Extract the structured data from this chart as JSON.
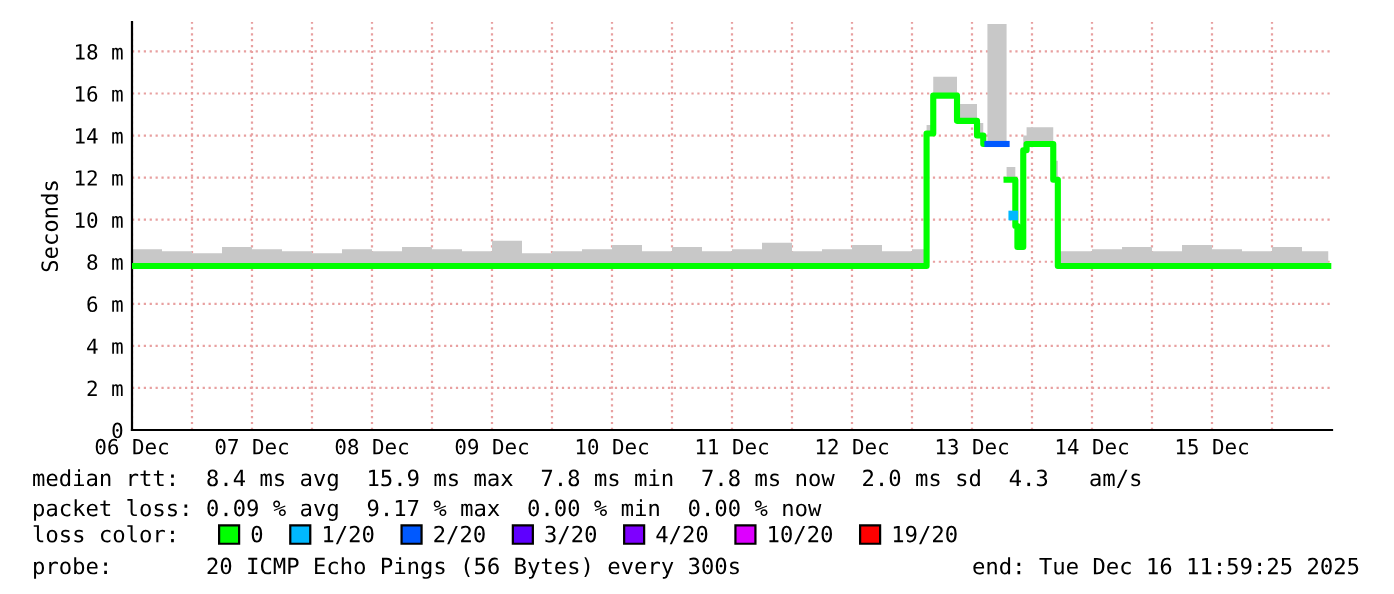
{
  "chart_data": {
    "type": "step",
    "ylabel": "Seconds",
    "xlim": [
      "2025-12-06T12:00",
      "2025-12-16T12:00"
    ],
    "xticks": [
      {
        "value": "2025-12-06T12:00",
        "label": "06 Dec"
      },
      {
        "value": "2025-12-07T00:00",
        "label": null
      },
      {
        "value": "2025-12-07T12:00",
        "label": "07 Dec"
      },
      {
        "value": "2025-12-08T00:00",
        "label": null
      },
      {
        "value": "2025-12-08T12:00",
        "label": "08 Dec"
      },
      {
        "value": "2025-12-09T00:00",
        "label": null
      },
      {
        "value": "2025-12-09T12:00",
        "label": "09 Dec"
      },
      {
        "value": "2025-12-10T00:00",
        "label": null
      },
      {
        "value": "2025-12-10T12:00",
        "label": "10 Dec"
      },
      {
        "value": "2025-12-11T00:00",
        "label": null
      },
      {
        "value": "2025-12-11T12:00",
        "label": "11 Dec"
      },
      {
        "value": "2025-12-12T00:00",
        "label": null
      },
      {
        "value": "2025-12-12T12:00",
        "label": "12 Dec"
      },
      {
        "value": "2025-12-13T00:00",
        "label": null
      },
      {
        "value": "2025-12-13T12:00",
        "label": "13 Dec"
      },
      {
        "value": "2025-12-14T00:00",
        "label": null
      },
      {
        "value": "2025-12-14T12:00",
        "label": "14 Dec"
      },
      {
        "value": "2025-12-15T00:00",
        "label": null
      },
      {
        "value": "2025-12-15T12:00",
        "label": "15 Dec"
      },
      {
        "value": "2025-12-16T00:00",
        "label": null
      }
    ],
    "ylim": [
      0,
      19.4
    ],
    "yticks": [
      0,
      {
        "value": 2,
        "label": "2 m"
      },
      {
        "value": 4,
        "label": "4 m"
      },
      {
        "value": 6,
        "label": "6 m"
      },
      {
        "value": 8,
        "label": "8 m"
      },
      {
        "value": 10,
        "label": "10 m"
      },
      {
        "value": 12,
        "label": "12 m"
      },
      {
        "value": 14,
        "label": "14 m"
      },
      {
        "value": 16,
        "label": "16 m"
      },
      {
        "value": 18,
        "label": "18 m"
      }
    ],
    "grid": true,
    "legend": "bottom",
    "legend_title": "loss color:",
    "series": [
      {
        "name": "0",
        "color": "#00ff00",
        "x": [
          "2025-12-06T12:00",
          "2025-12-06T18:00",
          "2025-12-07T00:00",
          "2025-12-07T06:00",
          "2025-12-07T12:00",
          "2025-12-07T18:00",
          "2025-12-08T00:00",
          "2025-12-08T06:00",
          "2025-12-08T12:00",
          "2025-12-08T18:00",
          "2025-12-09T00:00",
          "2025-12-09T06:00",
          "2025-12-09T12:00",
          "2025-12-09T18:00",
          "2025-12-10T00:00",
          "2025-12-10T06:00",
          "2025-12-10T12:00",
          "2025-12-10T18:00",
          "2025-12-11T00:00",
          "2025-12-11T06:00",
          "2025-12-11T12:00",
          "2025-12-11T18:00",
          "2025-12-12T00:00",
          "2025-12-12T06:00",
          "2025-12-12T12:00",
          "2025-12-12T18:00",
          "2025-12-13T00:00",
          "2025-12-13T02:55",
          "2025-12-13T04:15",
          "2025-12-13T09:00",
          "2025-12-13T13:00",
          "2025-12-13T14:15",
          "2025-12-13T15:05",
          "2025-12-13T18:55",
          "2025-12-13T20:40",
          "2025-12-13T21:05",
          "2025-12-13T22:15",
          "2025-12-13T22:55",
          "2025-12-14T04:15",
          "2025-12-14T05:10",
          "2025-12-14T12:00",
          "2025-12-14T18:00",
          "2025-12-15T00:00",
          "2025-12-15T06:00",
          "2025-12-15T12:00",
          "2025-12-15T18:00",
          "2025-12-16T00:00",
          "2025-12-16T06:00",
          "2025-12-16T11:00",
          "2025-12-16T11:15"
        ],
        "values": [
          7.8,
          7.8,
          7.8,
          7.8,
          7.8,
          7.8,
          7.8,
          7.8,
          7.8,
          7.8,
          7.8,
          7.8,
          7.8,
          7.8,
          7.8,
          7.8,
          7.8,
          7.8,
          7.8,
          7.8,
          7.8,
          7.8,
          7.8,
          7.8,
          7.8,
          7.8,
          7.8,
          14.1,
          15.9,
          14.7,
          14.0,
          13.6,
          null,
          11.9,
          9.7,
          8.7,
          13.3,
          13.6,
          11.9,
          7.8,
          7.8,
          7.8,
          7.8,
          7.8,
          7.8,
          7.8,
          7.8,
          7.8,
          7.8,
          7.8
        ],
        "lower": [
          7.8,
          7.8,
          7.8,
          7.8,
          7.8,
          7.8,
          7.8,
          7.8,
          7.8,
          7.8,
          7.8,
          7.8,
          7.8,
          7.8,
          7.8,
          7.8,
          7.8,
          7.8,
          7.8,
          7.8,
          7.8,
          7.8,
          7.8,
          7.8,
          7.8,
          7.8,
          7.8,
          14.1,
          15.9,
          14.7,
          14.0,
          13.6,
          null,
          11.9,
          9.7,
          8.7,
          13.3,
          13.6,
          11.9,
          7.8,
          7.8,
          7.8,
          7.8,
          7.8,
          7.8,
          7.8,
          7.8,
          7.8,
          7.8,
          7.8
        ],
        "upper": [
          8.6,
          8.5,
          8.4,
          8.7,
          8.6,
          8.5,
          8.4,
          8.6,
          8.5,
          8.7,
          8.6,
          8.5,
          9.0,
          8.4,
          8.5,
          8.6,
          8.8,
          8.5,
          8.7,
          8.5,
          8.6,
          8.9,
          8.5,
          8.6,
          8.8,
          8.5,
          8.6,
          14.5,
          16.8,
          15.5,
          14.6,
          15.3,
          null,
          12.5,
          11.0,
          9.5,
          14.0,
          14.4,
          12.8,
          8.5,
          8.6,
          8.7,
          8.5,
          8.8,
          8.6,
          8.5,
          8.7,
          8.5,
          8.5,
          8.5
        ]
      },
      {
        "name": "1/20",
        "color": "#00b8ff",
        "type": "scatter",
        "marker": "square",
        "x": [
          "2025-12-13T20:15"
        ],
        "values": [
          10.2
        ]
      },
      {
        "name": "2/20",
        "color": "#0059ff",
        "x": [
          "2025-12-13T15:05",
          "2025-12-13T18:55"
        ],
        "values": [
          13.6,
          13.6
        ],
        "lower": [
          13.6,
          13.6
        ],
        "upper": [
          19.3,
          19.3
        ]
      },
      {
        "name": "3/20",
        "color": "#5e00ff"
      },
      {
        "name": "4/20",
        "color": "#7e00ff"
      },
      {
        "name": "10/20",
        "color": "#dd00ff"
      },
      {
        "name": "19/20",
        "color": "#ff0000"
      }
    ],
    "annotations": [
      "median rtt:  8.4 ms avg  15.9 ms max  7.8 ms min  7.8 ms now  2.0 ms sd  4.3   am/s",
      "packet loss: 0.09 % avg  9.17 % max  0.00 % min  0.00 % now",
      "probe:       20 ICMP Echo Pings (56 Bytes) every 300s",
      "end: Tue Dec 16 11:59:25 2025"
    ]
  }
}
